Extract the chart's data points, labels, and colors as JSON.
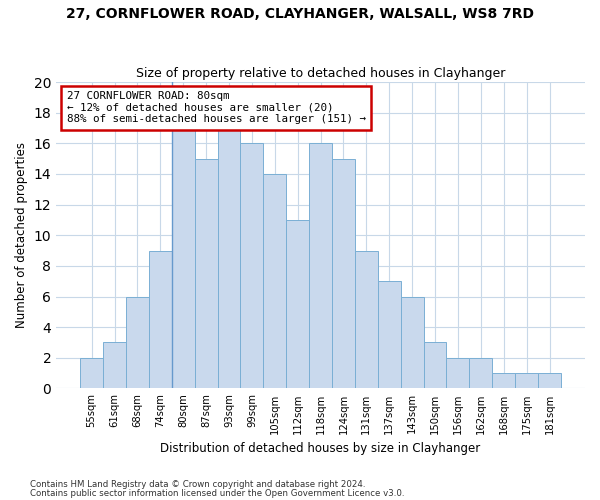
{
  "title1": "27, CORNFLOWER ROAD, CLAYHANGER, WALSALL, WS8 7RD",
  "title2": "Size of property relative to detached houses in Clayhanger",
  "xlabel": "Distribution of detached houses by size in Clayhanger",
  "ylabel": "Number of detached properties",
  "categories": [
    "55sqm",
    "61sqm",
    "68sqm",
    "74sqm",
    "80sqm",
    "87sqm",
    "93sqm",
    "99sqm",
    "105sqm",
    "112sqm",
    "118sqm",
    "124sqm",
    "131sqm",
    "137sqm",
    "143sqm",
    "150sqm",
    "156sqm",
    "162sqm",
    "168sqm",
    "175sqm",
    "181sqm"
  ],
  "values": [
    2,
    3,
    6,
    9,
    17,
    15,
    17,
    16,
    14,
    11,
    16,
    15,
    9,
    7,
    6,
    3,
    2,
    2,
    1,
    1,
    1
  ],
  "bar_color": "#c9d9ed",
  "bar_edge_color": "#7aafd4",
  "highlight_index": 4,
  "highlight_line_color": "#6699cc",
  "annotation_text": "27 CORNFLOWER ROAD: 80sqm\n← 12% of detached houses are smaller (20)\n88% of semi-detached houses are larger (151) →",
  "annotation_box_color": "white",
  "annotation_box_edge_color": "#cc0000",
  "ylim": [
    0,
    20
  ],
  "yticks": [
    0,
    2,
    4,
    6,
    8,
    10,
    12,
    14,
    16,
    18,
    20
  ],
  "footer1": "Contains HM Land Registry data © Crown copyright and database right 2024.",
  "footer2": "Contains public sector information licensed under the Open Government Licence v3.0.",
  "bg_color": "#ffffff",
  "plot_bg_color": "#ffffff",
  "grid_color": "#c8d8e8"
}
